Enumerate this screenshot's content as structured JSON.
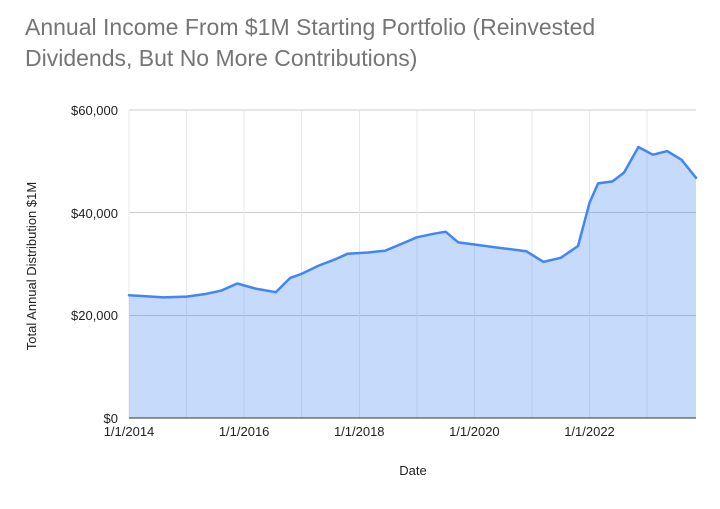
{
  "chart_data": {
    "type": "area",
    "title": "Annual Income From $1M Starting Portfolio (Reinvested Dividends, But No More Contributions)",
    "xlabel": "Date",
    "ylabel": "Total Annual Distribution $1M",
    "xlim": [
      2014,
      2023.85
    ],
    "ylim": [
      0,
      60000
    ],
    "grid": true,
    "legend": "none",
    "x_ticks": [
      {
        "x": 2014,
        "label": "1/1/2014"
      },
      {
        "x": 2016,
        "label": "1/1/2016"
      },
      {
        "x": 2018,
        "label": "1/1/2018"
      },
      {
        "x": 2020,
        "label": "1/1/2020"
      },
      {
        "x": 2022,
        "label": "1/1/2022"
      }
    ],
    "y_ticks": [
      {
        "v": 0,
        "label": "$0"
      },
      {
        "v": 20000,
        "label": "$20,000"
      },
      {
        "v": 40000,
        "label": "$40,000"
      },
      {
        "v": 60000,
        "label": "$60,000"
      }
    ],
    "series": [
      {
        "name": "Total Annual Distribution",
        "points": [
          [
            2014.0,
            23900
          ],
          [
            2014.3,
            23700
          ],
          [
            2014.6,
            23500
          ],
          [
            2015.0,
            23650
          ],
          [
            2015.3,
            24100
          ],
          [
            2015.6,
            24800
          ],
          [
            2015.88,
            26200
          ],
          [
            2016.2,
            25200
          ],
          [
            2016.55,
            24500
          ],
          [
            2016.8,
            27300
          ],
          [
            2017.0,
            28100
          ],
          [
            2017.3,
            29700
          ],
          [
            2017.6,
            31000
          ],
          [
            2017.8,
            32000
          ],
          [
            2018.15,
            32250
          ],
          [
            2018.45,
            32600
          ],
          [
            2018.75,
            34000
          ],
          [
            2019.0,
            35200
          ],
          [
            2019.3,
            35900
          ],
          [
            2019.5,
            36300
          ],
          [
            2019.72,
            34200
          ],
          [
            2020.0,
            33800
          ],
          [
            2020.4,
            33200
          ],
          [
            2020.9,
            32500
          ],
          [
            2021.2,
            30400
          ],
          [
            2021.5,
            31200
          ],
          [
            2021.8,
            33500
          ],
          [
            2022.0,
            41900
          ],
          [
            2022.15,
            45700
          ],
          [
            2022.4,
            46100
          ],
          [
            2022.6,
            47800
          ],
          [
            2022.85,
            52800
          ],
          [
            2023.1,
            51300
          ],
          [
            2023.35,
            52000
          ],
          [
            2023.6,
            50300
          ],
          [
            2023.85,
            46800
          ]
        ]
      }
    ],
    "colors": {
      "line": "#4285f4",
      "fill": "rgba(66,133,244,0.30)",
      "title_text": "#757575",
      "axis_text": "#222222",
      "h_gridline": "#cccccc",
      "v_gridline": "#e8e8e8",
      "baseline": "#333333"
    }
  }
}
